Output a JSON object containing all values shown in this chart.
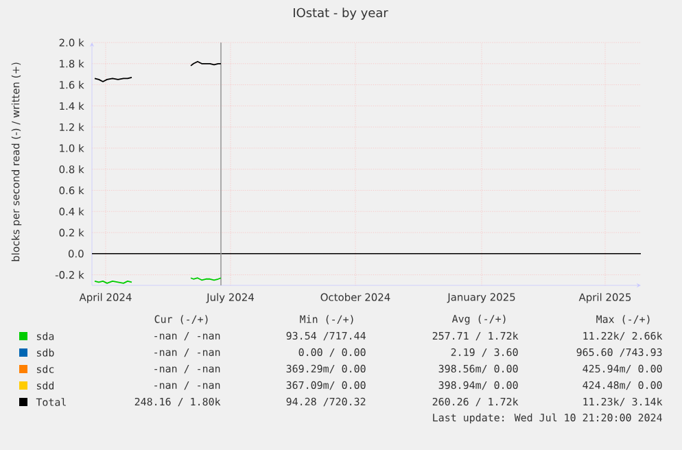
{
  "chart_data": {
    "type": "line",
    "title": "IOstat - by year",
    "ylabel": "blocks per second read (-) / written (+)",
    "xlim": [
      "2024-04-07",
      "2025-05-12"
    ],
    "ylim": [
      -300,
      2000
    ],
    "xticks": [
      {
        "value": "2024-04-17",
        "label": "April 2024"
      },
      {
        "value": "2024-07-17",
        "label": "July 2024"
      },
      {
        "value": "2024-10-16",
        "label": "October 2024"
      },
      {
        "value": "2025-01-16",
        "label": "January 2025"
      },
      {
        "value": "2025-04-16",
        "label": "April 2025"
      }
    ],
    "yticks": [
      {
        "value": -200,
        "label": "-0.2 k"
      },
      {
        "value": 0,
        "label": "0.0"
      },
      {
        "value": 200,
        "label": "0.2 k"
      },
      {
        "value": 400,
        "label": "0.4 k"
      },
      {
        "value": 600,
        "label": "0.6 k"
      },
      {
        "value": 800,
        "label": "0.8 k"
      },
      {
        "value": 1000,
        "label": "1.0 k"
      },
      {
        "value": 1200,
        "label": "1.2 k"
      },
      {
        "value": 1400,
        "label": "1.4 k"
      },
      {
        "value": 1600,
        "label": "1.6 k"
      },
      {
        "value": 1800,
        "label": "1.8 k"
      },
      {
        "value": 2000,
        "label": "2.0 k"
      }
    ],
    "grid": true,
    "legend": "bottom",
    "series": [
      {
        "name": "sda",
        "color": "#00cc00",
        "x": [
          "2024-04-09",
          "2024-04-12",
          "2024-04-15",
          "2024-04-18",
          "2024-04-22",
          "2024-04-26",
          "2024-04-30",
          "2024-05-03",
          "2024-05-06",
          "2024-05-20",
          "2024-06-18",
          "2024-06-20",
          "2024-06-23",
          "2024-06-26",
          "2024-06-29",
          "2024-07-02",
          "2024-07-05",
          "2024-07-08",
          "2024-07-10"
        ],
        "values": [
          -260,
          -270,
          -260,
          -280,
          -260,
          -270,
          -280,
          -260,
          -270,
          null,
          -230,
          -240,
          -230,
          -250,
          -240,
          -240,
          -250,
          -240,
          -230
        ]
      },
      {
        "name": "sdb",
        "color": "#0066b3",
        "values": [
          null
        ]
      },
      {
        "name": "sdc",
        "color": "#ff8000",
        "values": [
          null
        ]
      },
      {
        "name": "sdd",
        "color": "#ffcc00",
        "values": [
          null
        ]
      },
      {
        "name": "Total",
        "color": "#000000",
        "x": [
          "2024-04-09",
          "2024-04-12",
          "2024-04-15",
          "2024-04-18",
          "2024-04-22",
          "2024-04-26",
          "2024-04-30",
          "2024-05-03",
          "2024-05-06",
          "2024-05-20",
          "2024-06-18",
          "2024-06-20",
          "2024-06-23",
          "2024-06-26",
          "2024-06-29",
          "2024-07-02",
          "2024-07-05",
          "2024-07-08",
          "2024-07-10"
        ],
        "values": [
          1660,
          1650,
          1630,
          1650,
          1660,
          1650,
          1660,
          1660,
          1670,
          null,
          1780,
          1800,
          1820,
          1800,
          1800,
          1800,
          1790,
          1800,
          1800
        ]
      }
    ],
    "ref_lines": [
      {
        "axis": "y",
        "value": 0,
        "color": "#000000"
      },
      {
        "axis": "x",
        "value": "2024-07-10",
        "color": "#999999"
      }
    ],
    "annotations": [
      "Cur (-/+)",
      "Min (-/+)",
      "Avg (-/+)",
      "Max (-/+)",
      "-nan / -nan",
      "93.54 /717.44",
      "257.71 / 1.72k",
      "11.22k/ 2.66k",
      "-nan / -nan",
      "0.00 / 0.00",
      "2.19 / 3.60",
      "965.60 /743.93",
      "-nan / -nan",
      "369.29m/ 0.00",
      "398.56m/ 0.00",
      "425.94m/ 0.00",
      "-nan / -nan",
      "367.09m/ 0.00",
      "398.94m/ 0.00",
      "424.48m/ 0.00",
      "248.16 / 1.80k",
      "94.28 /720.32",
      "260.26 / 1.72k",
      "11.23k/ 3.14k",
      "Last update: Wed Jul 10 21:20:00 2024"
    ]
  }
}
